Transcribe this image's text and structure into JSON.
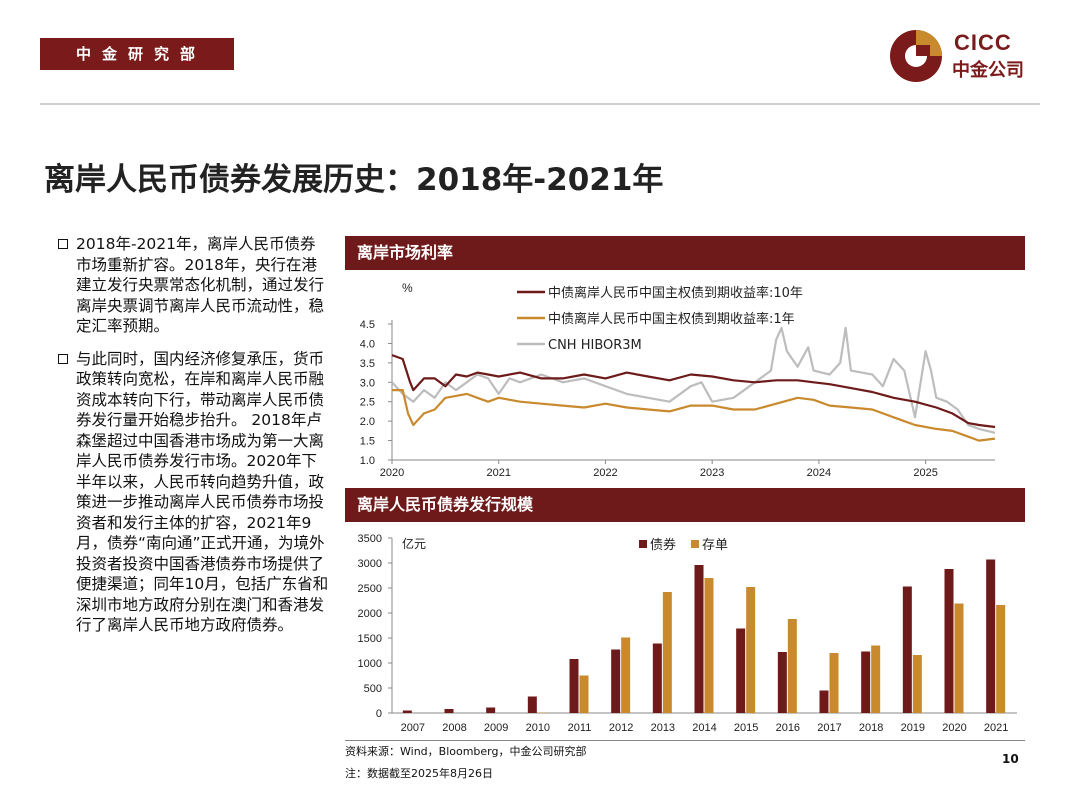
{
  "header": {
    "department": "中金研究部",
    "logo_en": "CICC",
    "logo_cn": "中金公司",
    "brand_color": "#7a1a1a"
  },
  "page_title": "离岸人民币债券发展历史：2018年-2021年",
  "bullets": [
    "2018年-2021年，离岸人民币债券市场重新扩容。2018年，央行在港建立发行央票常态化机制，通过发行离岸央票调节离岸人民币流动性，稳定汇率预期。",
    "与此同时，国内经济修复承压，货币政策转向宽松，在岸和离岸人民币融资成本转向下行，带动离岸人民币债券发行量开始稳步抬升。 2018年卢森堡超过中国香港市场成为第一大离岸人民币债券发行市场。2020年下半年以来，人民币转向趋势升值，政策进一步推动离岸人民币债券市场投资者和发行主体的扩容，2021年9月，债券“南向通”正式开通，为境外投资者投资中国香港债券市场提供了便捷渠道；同年10月，包括广东省和深圳市地方政府分别在澳门和香港发行了离岸人民币地方政府债券。"
  ],
  "footer": {
    "source": "资料来源：Wind，Bloomberg，中金公司研究部",
    "note": "注：数据截至2025年8月26日",
    "page_number": "10"
  },
  "chart_data": [
    {
      "type": "line",
      "title": "离岸市场利率",
      "ylabel": "%",
      "ylim": [
        1.0,
        4.5
      ],
      "yticks": [
        "4.5",
        "4.0",
        "3.5",
        "3.0",
        "2.5",
        "2.0",
        "1.5",
        "1.0"
      ],
      "xlim": [
        2020.0,
        2025.65
      ],
      "xticks": [
        "2020",
        "2021",
        "2022",
        "2023",
        "2024",
        "2025"
      ],
      "legend_position": "top-right",
      "series": [
        {
          "name": "中债离岸人民币中国主权债到期收益率:10年",
          "color": "#6e1a1a",
          "points": [
            [
              2020.0,
              3.7
            ],
            [
              2020.1,
              3.6
            ],
            [
              2020.17,
              3.0
            ],
            [
              2020.2,
              2.8
            ],
            [
              2020.3,
              3.1
            ],
            [
              2020.4,
              3.1
            ],
            [
              2020.5,
              2.9
            ],
            [
              2020.6,
              3.2
            ],
            [
              2020.7,
              3.15
            ],
            [
              2020.8,
              3.25
            ],
            [
              2020.9,
              3.2
            ],
            [
              2021.0,
              3.15
            ],
            [
              2021.2,
              3.25
            ],
            [
              2021.4,
              3.1
            ],
            [
              2021.6,
              3.1
            ],
            [
              2021.8,
              3.2
            ],
            [
              2022.0,
              3.1
            ],
            [
              2022.2,
              3.25
            ],
            [
              2022.4,
              3.15
            ],
            [
              2022.6,
              3.05
            ],
            [
              2022.8,
              3.2
            ],
            [
              2023.0,
              3.15
            ],
            [
              2023.2,
              3.05
            ],
            [
              2023.4,
              3.0
            ],
            [
              2023.6,
              3.05
            ],
            [
              2023.8,
              3.05
            ],
            [
              2023.95,
              3.0
            ],
            [
              2024.1,
              2.95
            ],
            [
              2024.3,
              2.85
            ],
            [
              2024.5,
              2.75
            ],
            [
              2024.7,
              2.6
            ],
            [
              2024.9,
              2.5
            ],
            [
              2025.1,
              2.35
            ],
            [
              2025.25,
              2.2
            ],
            [
              2025.4,
              1.95
            ],
            [
              2025.5,
              1.9
            ],
            [
              2025.65,
              1.85
            ]
          ]
        },
        {
          "name": "中债离岸人民币中国主权债到期收益率:1年",
          "color": "#c98a2e",
          "points": [
            [
              2020.0,
              2.8
            ],
            [
              2020.1,
              2.8
            ],
            [
              2020.15,
              2.2
            ],
            [
              2020.2,
              1.9
            ],
            [
              2020.3,
              2.2
            ],
            [
              2020.4,
              2.3
            ],
            [
              2020.5,
              2.6
            ],
            [
              2020.6,
              2.65
            ],
            [
              2020.7,
              2.7
            ],
            [
              2020.8,
              2.6
            ],
            [
              2020.9,
              2.5
            ],
            [
              2021.0,
              2.6
            ],
            [
              2021.2,
              2.5
            ],
            [
              2021.4,
              2.45
            ],
            [
              2021.6,
              2.4
            ],
            [
              2021.8,
              2.35
            ],
            [
              2022.0,
              2.45
            ],
            [
              2022.2,
              2.35
            ],
            [
              2022.4,
              2.3
            ],
            [
              2022.6,
              2.25
            ],
            [
              2022.8,
              2.4
            ],
            [
              2023.0,
              2.4
            ],
            [
              2023.2,
              2.3
            ],
            [
              2023.4,
              2.3
            ],
            [
              2023.6,
              2.45
            ],
            [
              2023.8,
              2.6
            ],
            [
              2023.95,
              2.55
            ],
            [
              2024.1,
              2.4
            ],
            [
              2024.3,
              2.35
            ],
            [
              2024.5,
              2.3
            ],
            [
              2024.7,
              2.1
            ],
            [
              2024.9,
              1.9
            ],
            [
              2025.1,
              1.8
            ],
            [
              2025.25,
              1.75
            ],
            [
              2025.4,
              1.6
            ],
            [
              2025.5,
              1.5
            ],
            [
              2025.65,
              1.55
            ]
          ]
        },
        {
          "name": "CNH HIBOR3M",
          "color": "#bdbdbd",
          "points": [
            [
              2020.0,
              3.0
            ],
            [
              2020.1,
              2.7
            ],
            [
              2020.2,
              2.5
            ],
            [
              2020.3,
              2.8
            ],
            [
              2020.4,
              2.6
            ],
            [
              2020.5,
              3.0
            ],
            [
              2020.6,
              2.8
            ],
            [
              2020.7,
              3.0
            ],
            [
              2020.8,
              3.2
            ],
            [
              2020.9,
              3.1
            ],
            [
              2021.0,
              2.7
            ],
            [
              2021.1,
              3.1
            ],
            [
              2021.2,
              3.0
            ],
            [
              2021.4,
              3.2
            ],
            [
              2021.6,
              3.0
            ],
            [
              2021.8,
              3.1
            ],
            [
              2022.0,
              2.9
            ],
            [
              2022.2,
              2.7
            ],
            [
              2022.4,
              2.6
            ],
            [
              2022.6,
              2.5
            ],
            [
              2022.8,
              2.9
            ],
            [
              2022.9,
              3.0
            ],
            [
              2023.0,
              2.5
            ],
            [
              2023.2,
              2.6
            ],
            [
              2023.4,
              3.0
            ],
            [
              2023.55,
              3.3
            ],
            [
              2023.6,
              4.1
            ],
            [
              2023.65,
              4.4
            ],
            [
              2023.7,
              3.8
            ],
            [
              2023.8,
              3.4
            ],
            [
              2023.9,
              3.9
            ],
            [
              2023.95,
              3.3
            ],
            [
              2024.1,
              3.2
            ],
            [
              2024.2,
              3.5
            ],
            [
              2024.25,
              4.4
            ],
            [
              2024.3,
              3.3
            ],
            [
              2024.5,
              3.2
            ],
            [
              2024.6,
              2.9
            ],
            [
              2024.7,
              3.6
            ],
            [
              2024.8,
              3.3
            ],
            [
              2024.9,
              2.1
            ],
            [
              2025.0,
              3.8
            ],
            [
              2025.05,
              3.3
            ],
            [
              2025.1,
              2.6
            ],
            [
              2025.2,
              2.5
            ],
            [
              2025.3,
              2.3
            ],
            [
              2025.4,
              1.9
            ],
            [
              2025.5,
              1.8
            ],
            [
              2025.65,
              1.7
            ]
          ]
        }
      ]
    },
    {
      "type": "bar",
      "title": "离岸人民币债券发行规模",
      "ylabel": "亿元",
      "ylim": [
        0,
        3500
      ],
      "yticks": [
        "3500",
        "3000",
        "2500",
        "2000",
        "1500",
        "1000",
        "500",
        "0"
      ],
      "legend_position": "top-center",
      "categories": [
        "2007",
        "2008",
        "2009",
        "2010",
        "2011",
        "2012",
        "2013",
        "2014",
        "2015",
        "2016",
        "2017",
        "2018",
        "2019",
        "2020",
        "2021"
      ],
      "series": [
        {
          "name": "债券",
          "color": "#6e1a1a",
          "values": [
            50,
            80,
            110,
            330,
            1080,
            1270,
            1390,
            2960,
            1690,
            1220,
            450,
            1230,
            2530,
            2880,
            3070
          ]
        },
        {
          "name": "存单",
          "color": "#c98a2e",
          "values": [
            0,
            0,
            0,
            10,
            750,
            1510,
            2420,
            2700,
            2520,
            1880,
            1200,
            1350,
            1160,
            2190,
            2160
          ]
        }
      ]
    }
  ]
}
